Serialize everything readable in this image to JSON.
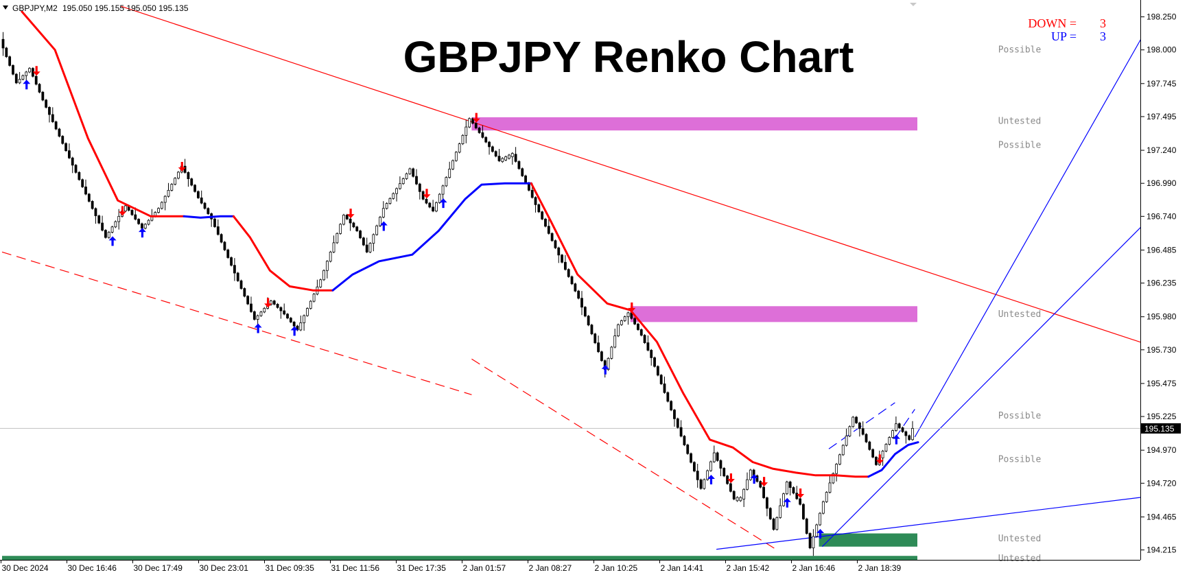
{
  "header": {
    "symbol": "GBPJPY,M2",
    "ohlc": "195.050 195.155 195.050 195.135"
  },
  "counters": {
    "down_label": "DOWN =",
    "down_value": "3",
    "up_label": "UP =",
    "up_value": "3",
    "down_color": "#ff0000",
    "up_color": "#0000ff"
  },
  "chart_data": {
    "type": "renko",
    "title": "GBPJPY Renko Chart",
    "symbol": "GBPJPY",
    "timeframe": "M2",
    "current_price": 195.135,
    "current_price_label": "195.135",
    "y_ticks": [
      "198.250",
      "198.000",
      "197.745",
      "197.495",
      "197.240",
      "196.990",
      "196.740",
      "196.485",
      "196.235",
      "195.980",
      "195.730",
      "195.475",
      "195.225",
      "194.970",
      "194.720",
      "194.465",
      "194.215"
    ],
    "ylim": [
      194.14,
      198.31
    ],
    "x_tick_labels": [
      "30 Dec 2024",
      "30 Dec 16:46",
      "30 Dec 17:49",
      "30 Dec 23:01",
      "31 Dec 09:35",
      "31 Dec 11:56",
      "31 Dec 17:35",
      "2 Jan 01:57",
      "2 Jan 08:27",
      "2 Jan 10:25",
      "2 Jan 14:41",
      "2 Jan 15:42",
      "2 Jan 16:46",
      "2 Jan 18:39"
    ],
    "grid": false,
    "brick_size": 0.025,
    "price_path": [
      [
        0,
        198.08
      ],
      [
        5,
        197.75
      ],
      [
        9,
        197.86
      ],
      [
        13,
        197.62
      ],
      [
        32,
        196.58
      ],
      [
        38,
        196.82
      ],
      [
        43,
        196.65
      ],
      [
        48,
        196.8
      ],
      [
        55,
        197.12
      ],
      [
        60,
        196.88
      ],
      [
        64,
        196.72
      ],
      [
        77,
        195.96
      ],
      [
        82,
        196.1
      ],
      [
        86,
        196.0
      ],
      [
        90,
        195.88
      ],
      [
        97,
        196.26
      ],
      [
        104,
        196.75
      ],
      [
        108,
        196.63
      ],
      [
        111,
        196.47
      ],
      [
        116,
        196.8
      ],
      [
        124,
        197.1
      ],
      [
        128,
        196.87
      ],
      [
        131,
        196.78
      ],
      [
        142,
        197.48
      ],
      [
        151,
        197.16
      ],
      [
        155,
        197.21
      ],
      [
        175,
        196.12
      ],
      [
        183,
        195.58
      ],
      [
        187,
        195.92
      ],
      [
        190,
        196.01
      ],
      [
        194,
        195.84
      ],
      [
        197,
        195.67
      ],
      [
        212,
        194.68
      ],
      [
        216,
        194.95
      ],
      [
        222,
        194.6
      ],
      [
        224,
        194.6
      ],
      [
        227,
        194.82
      ],
      [
        230,
        194.69
      ],
      [
        234,
        194.37
      ],
      [
        238,
        194.73
      ],
      [
        242,
        194.56
      ],
      [
        245,
        194.23
      ],
      [
        249,
        194.58
      ],
      [
        258,
        195.22
      ],
      [
        261,
        195.09
      ],
      [
        265,
        194.86
      ],
      [
        271,
        195.17
      ],
      [
        275,
        195.05
      ],
      [
        276,
        195.135
      ]
    ],
    "indicator_line": {
      "name": "",
      "down_color": "#ff0000",
      "up_color": "#0000ff",
      "segments": [
        {
          "c": "down",
          "pts": [
            [
              6,
              198.29
            ],
            [
              16,
              198.0
            ],
            [
              26,
              197.33
            ],
            [
              35,
              196.86
            ],
            [
              45,
              196.74
            ],
            [
              50,
              196.74
            ],
            [
              55,
              196.74
            ]
          ]
        },
        {
          "c": "up",
          "pts": [
            [
              55,
              196.74
            ],
            [
              60,
              196.73
            ],
            [
              66,
              196.74
            ],
            [
              70,
              196.74
            ]
          ]
        },
        {
          "c": "down",
          "pts": [
            [
              70,
              196.74
            ],
            [
              75,
              196.58
            ],
            [
              81,
              196.33
            ],
            [
              87,
              196.21
            ],
            [
              94,
              196.18
            ],
            [
              100,
              196.18
            ]
          ]
        },
        {
          "c": "up",
          "pts": [
            [
              100,
              196.18
            ],
            [
              106,
              196.3
            ],
            [
              114,
              196.4
            ],
            [
              124,
              196.45
            ],
            [
              132,
              196.63
            ],
            [
              140,
              196.87
            ],
            [
              145,
              196.98
            ],
            [
              152,
              196.99
            ],
            [
              160,
              196.99
            ]
          ]
        },
        {
          "c": "down",
          "pts": [
            [
              160,
              196.99
            ],
            [
              166,
              196.7
            ],
            [
              174,
              196.3
            ],
            [
              183,
              196.08
            ],
            [
              190,
              196.03
            ],
            [
              198,
              195.79
            ],
            [
              206,
              195.4
            ],
            [
              214,
              195.05
            ],
            [
              221,
              194.99
            ],
            [
              227,
              194.88
            ],
            [
              233,
              194.83
            ],
            [
              240,
              194.8
            ],
            [
              246,
              194.78
            ],
            [
              252,
              194.78
            ],
            [
              258,
              194.77
            ],
            [
              262,
              194.77
            ]
          ]
        },
        {
          "c": "up",
          "pts": [
            [
              262,
              194.77
            ],
            [
              266,
              194.82
            ],
            [
              270,
              194.94
            ],
            [
              274,
              195.01
            ],
            [
              277,
              195.03
            ]
          ]
        }
      ]
    },
    "signals": {
      "down": [
        10,
        54,
        36,
        80,
        105,
        128,
        143,
        190,
        220,
        230,
        241,
        265
      ],
      "up": [
        7,
        33,
        42,
        77,
        88,
        115,
        133,
        182,
        214,
        227,
        237,
        247,
        270
      ]
    },
    "zones": [
      {
        "kind": "supply",
        "price_top": 197.49,
        "price_bottom": 197.39,
        "start_index": 142,
        "color": "#dd6fd8"
      },
      {
        "kind": "supply",
        "price_top": 196.06,
        "price_bottom": 195.94,
        "start_index": 190,
        "color": "#dd6fd8"
      },
      {
        "kind": "demand",
        "price_top": 194.34,
        "price_bottom": 194.24,
        "start_index": 247,
        "color": "#2e8b57"
      },
      {
        "kind": "demand",
        "price_top": 194.17,
        "price_bottom": 194.14,
        "start_index": 0,
        "color": "#2e8b57"
      }
    ],
    "zone_labels": [
      {
        "text": "Possible",
        "price": 198.0
      },
      {
        "text": "Untested",
        "price": 197.46
      },
      {
        "text": "Possible",
        "price": 197.28
      },
      {
        "text": "Untested",
        "price": 196.0
      },
      {
        "text": "Possible",
        "price": 195.23
      },
      {
        "text": "Possible",
        "price": 194.9
      },
      {
        "text": "Untested",
        "price": 194.3
      },
      {
        "text": "Untested",
        "price": 194.15
      }
    ],
    "trendlines": [
      {
        "color": "#ff0000",
        "style": "solid",
        "from": [
          36,
          198.33
        ],
        "to": [
          350,
          195.74
        ]
      },
      {
        "color": "#ff0000",
        "style": "dashed",
        "from": [
          0,
          196.47
        ],
        "to": [
          142,
          195.39
        ]
      },
      {
        "color": "#ff0000",
        "style": "dashed",
        "from": [
          142,
          195.66
        ],
        "to": [
          234,
          194.22
        ]
      },
      {
        "color": "#0000ff",
        "style": "solid",
        "from": [
          216,
          194.22
        ],
        "to": [
          350,
          194.63
        ]
      },
      {
        "color": "#0000ff",
        "style": "solid",
        "from": [
          248,
          194.24
        ],
        "to": [
          350,
          196.8
        ]
      },
      {
        "color": "#0000ff",
        "style": "solid",
        "from": [
          276,
          195.07
        ],
        "to": [
          350,
          198.33
        ]
      },
      {
        "color": "#0000ff",
        "style": "dashed",
        "from": [
          250,
          194.98
        ],
        "to": [
          270,
          195.33
        ]
      },
      {
        "color": "#0000ff",
        "style": "dashed",
        "from": [
          270,
          195.06
        ],
        "to": [
          276,
          195.28
        ]
      }
    ]
  }
}
